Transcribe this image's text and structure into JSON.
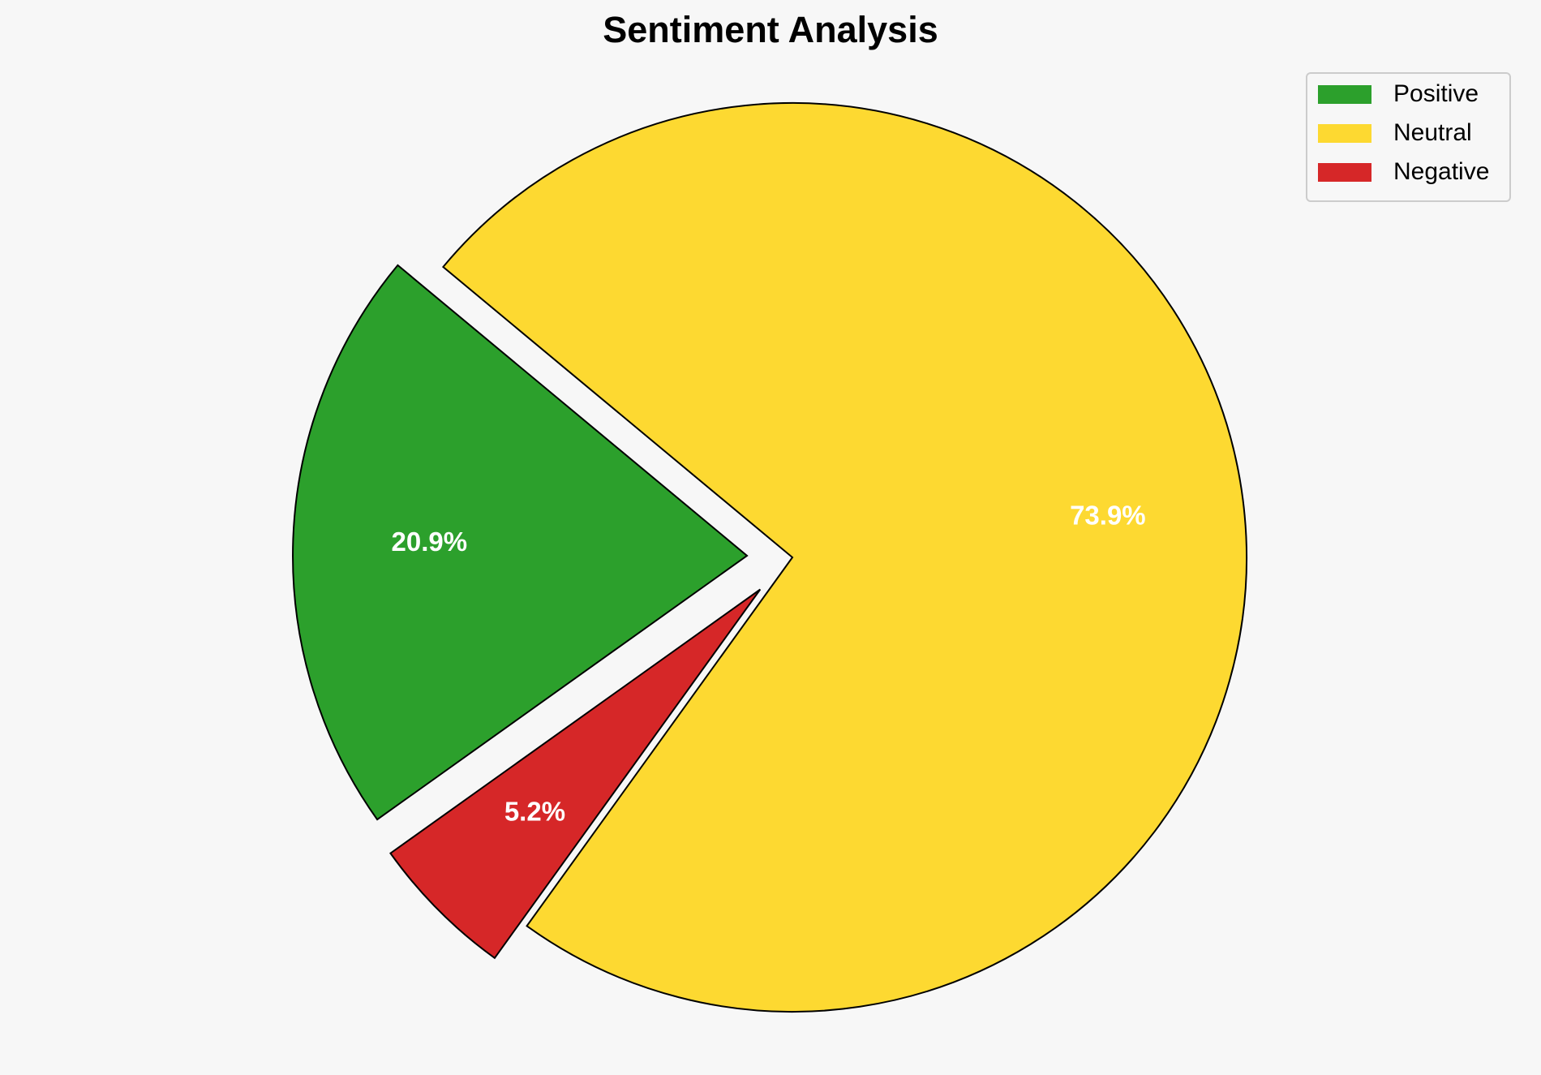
{
  "chart_data": {
    "type": "pie",
    "title": "Sentiment Analysis",
    "categories": [
      "Positive",
      "Neutral",
      "Negative"
    ],
    "values": [
      20.9,
      73.9,
      5.2
    ],
    "value_labels": [
      "20.9%",
      "73.9%",
      "5.2%"
    ],
    "colors": [
      "#2ca02c",
      "#fdd931",
      "#d62728"
    ],
    "legend": "upper right"
  }
}
